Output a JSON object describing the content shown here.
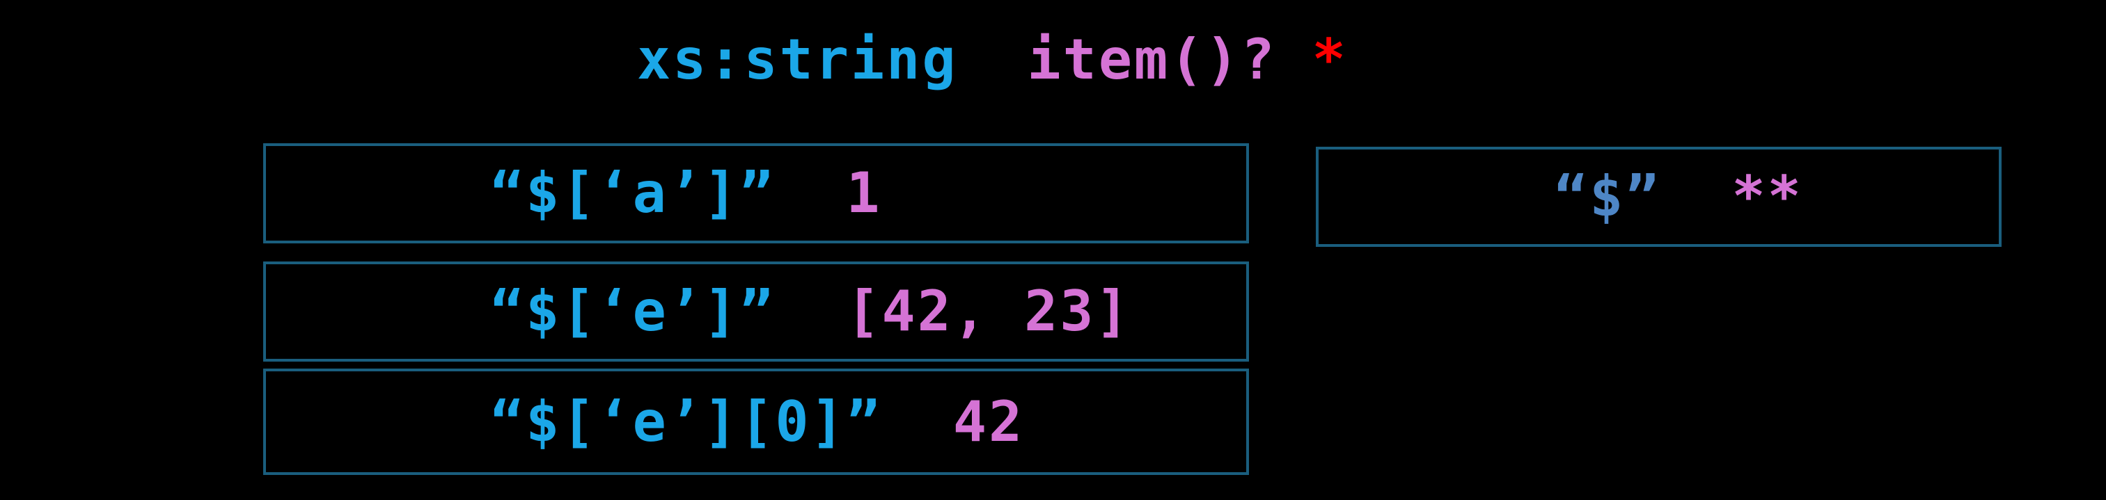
{
  "title": {
    "segments": [
      {
        "text": "xs:string",
        "color": "#1BA7E8"
      },
      {
        "text": "item()?",
        "color": "#D573D5"
      },
      {
        "text": "*",
        "color": "#FF0000"
      }
    ]
  },
  "left_boxes": [
    {
      "path": "“$[‘a’]”",
      "value": "1"
    },
    {
      "path": "“$[‘e’]”",
      "value": "[42, 23]"
    },
    {
      "path": "“$[‘e’][0]”",
      "value": "42"
    }
  ],
  "right_box": {
    "path": "“$”",
    "value": "**"
  },
  "colors": {
    "background": "#000000",
    "box_border": "#1A5E7E",
    "path_text_cyan": "#1BA7E8",
    "path_text_blue": "#4E86C6",
    "value_text_orchid": "#D573D5",
    "title_type_cyan": "#1BA7E8",
    "title_item_orchid": "#D573D5",
    "title_asterisk_red": "#FF0000"
  }
}
